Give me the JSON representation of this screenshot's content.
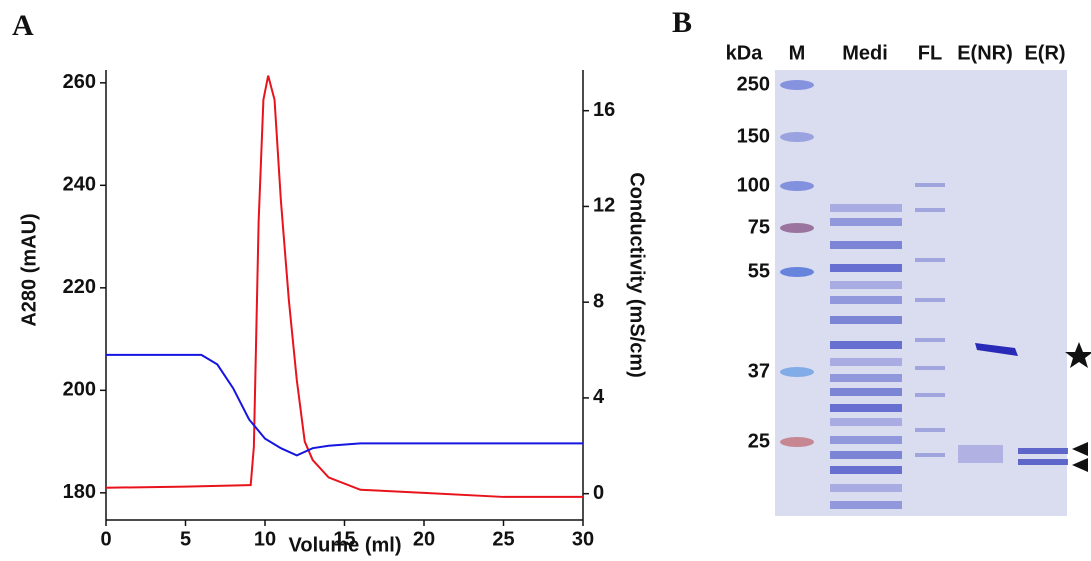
{
  "chart_data": {
    "type": "line",
    "panel_label": "A",
    "x_label": "Volume (ml)",
    "y_label": "A280 (mAU)",
    "y2_label": "Conductivity (mS/cm)",
    "xlim": [
      0,
      30
    ],
    "xticks": [
      0,
      5,
      10,
      15,
      20,
      25,
      30
    ],
    "ylim": [
      174.7,
      262.5
    ],
    "yticks": [
      180,
      200,
      220,
      240,
      260
    ],
    "y2lim": [
      -1.1,
      17.7
    ],
    "y2ticks": [
      0,
      4,
      8,
      12,
      16
    ],
    "series": [
      {
        "name": "A280",
        "color": "#e8131b",
        "x": [
          0,
          5,
          9,
          9.1,
          9.3,
          9.6,
          9.9,
          10.2,
          10.6,
          11,
          11.5,
          12,
          12.5,
          13,
          14,
          16,
          20,
          25,
          30
        ],
        "values": [
          181,
          181.2,
          181.5,
          181.5,
          189,
          233,
          256.7,
          261.4,
          256.7,
          237,
          217.6,
          202,
          190,
          186.4,
          183,
          180.6,
          180,
          179.2,
          179.2
        ]
      },
      {
        "name": "Conductivity",
        "color": "#1515e0",
        "axis": "y2",
        "x": [
          0,
          6,
          7,
          8,
          9,
          10,
          11,
          12,
          13,
          14,
          16,
          30
        ],
        "values": [
          5.8,
          5.8,
          5.4,
          4.4,
          3.1,
          2.3,
          1.9,
          1.6,
          1.9,
          2.0,
          2.1,
          2.1
        ]
      }
    ]
  },
  "gel": {
    "panel_label": "B",
    "marker_header": "kDa",
    "lane_labels": [
      "M",
      "Medi",
      "FL",
      "E(NR)",
      "E(R)"
    ],
    "markers": [
      "250",
      "150",
      "100",
      "75",
      "55",
      "37",
      "25"
    ]
  }
}
